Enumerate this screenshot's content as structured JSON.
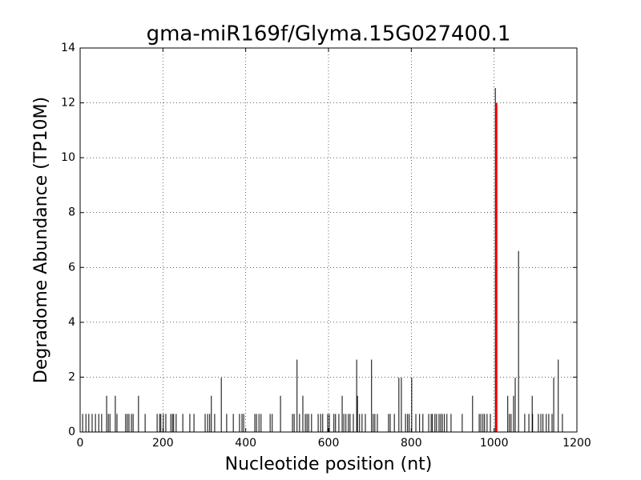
{
  "chart_data": {
    "type": "stem",
    "title": "gma-miR169f/Glyma.15G027400.1",
    "xlabel": "Nucleotide position (nt)",
    "ylabel": "Degradome Abundance (TP10M)",
    "xlim": [
      0,
      1200
    ],
    "ylim": [
      0,
      14
    ],
    "xticks": [
      0,
      200,
      400,
      600,
      800,
      1000,
      1200
    ],
    "yticks": [
      0,
      2,
      4,
      6,
      8,
      10,
      12,
      14
    ],
    "grid": true,
    "color": "#000000",
    "x": [
      6,
      14,
      21,
      29,
      37,
      45,
      52,
      68,
      72,
      89,
      110,
      114,
      118,
      124,
      128,
      157,
      186,
      192,
      195,
      201,
      207,
      219,
      223,
      226,
      232,
      248,
      265,
      275,
      302,
      308,
      313,
      325,
      354,
      370,
      385,
      391,
      395,
      422,
      426,
      432,
      437,
      459,
      464,
      513,
      517,
      530,
      544,
      548,
      552,
      559,
      575,
      581,
      586,
      598,
      602,
      613,
      617,
      625,
      637,
      642,
      648,
      652,
      660,
      675,
      681,
      689,
      708,
      712,
      718,
      745,
      749,
      759,
      786,
      791,
      795,
      811,
      820,
      828,
      842,
      848,
      851,
      857,
      861,
      867,
      871,
      875,
      880,
      886,
      896,
      923,
      964,
      968,
      973,
      977,
      983,
      991,
      1037,
      1041,
      1074,
      1084,
      1093,
      1107,
      1113,
      1118,
      1126,
      1132,
      1140,
      1165,
      64,
      85,
      141,
      317,
      484,
      538,
      633,
      670,
      948,
      1033,
      1047,
      1092,
      341,
      770,
      776,
      801,
      1051,
      1144,
      524,
      668,
      704,
      1155,
      1059,
      1003
    ],
    "values": [
      0.66,
      0.66,
      0.66,
      0.66,
      0.66,
      0.66,
      0.66,
      0.66,
      0.66,
      0.66,
      0.66,
      0.66,
      0.66,
      0.66,
      0.66,
      0.66,
      0.66,
      0.66,
      0.66,
      0.66,
      0.66,
      0.66,
      0.66,
      0.66,
      0.66,
      0.66,
      0.66,
      0.66,
      0.66,
      0.66,
      0.66,
      0.66,
      0.66,
      0.66,
      0.66,
      0.66,
      0.66,
      0.66,
      0.66,
      0.66,
      0.66,
      0.66,
      0.66,
      0.66,
      0.66,
      0.66,
      0.66,
      0.66,
      0.66,
      0.66,
      0.66,
      0.66,
      0.66,
      0.66,
      0.66,
      0.66,
      0.66,
      0.66,
      0.66,
      0.66,
      0.66,
      0.66,
      0.66,
      0.66,
      0.66,
      0.66,
      0.66,
      0.66,
      0.66,
      0.66,
      0.66,
      0.66,
      0.66,
      0.66,
      0.66,
      0.66,
      0.66,
      0.66,
      0.66,
      0.66,
      0.66,
      0.66,
      0.66,
      0.66,
      0.66,
      0.66,
      0.66,
      0.66,
      0.66,
      0.66,
      0.66,
      0.66,
      0.66,
      0.66,
      0.66,
      0.66,
      0.66,
      0.66,
      0.66,
      0.66,
      0.66,
      0.66,
      0.66,
      0.66,
      0.66,
      0.66,
      0.66,
      0.66,
      1.32,
      1.32,
      1.32,
      1.32,
      1.32,
      1.32,
      1.32,
      1.32,
      1.32,
      1.32,
      1.32,
      1.32,
      1.98,
      1.98,
      1.98,
      1.98,
      1.98,
      1.98,
      2.64,
      2.64,
      2.64,
      2.64,
      6.6,
      12.54
    ],
    "highlight": {
      "color": "#ff0000",
      "x": [
        1006
      ],
      "values": [
        12.0
      ]
    }
  }
}
